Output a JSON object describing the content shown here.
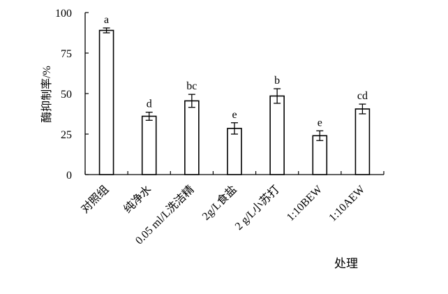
{
  "chart_data": {
    "type": "bar",
    "categories": [
      "对照组",
      "纯净水",
      "0.05 ml/L洗洁精",
      "2g/L食盐",
      "2 g/L小苏打",
      "1:10BEW",
      "1:10AEW"
    ],
    "values": [
      89,
      36,
      45.5,
      28.5,
      48.5,
      24,
      40.5
    ],
    "errors": [
      1.5,
      2.5,
      4,
      3.5,
      4.5,
      3,
      3
    ],
    "significance_labels": [
      "a",
      "d",
      "bc",
      "e",
      "b",
      "e",
      "cd"
    ],
    "ylabel": "酶抑制率/%",
    "xlabel": "处理",
    "ylim": [
      0,
      100
    ],
    "yticks": [
      0,
      25,
      50,
      75,
      100
    ],
    "grid": false,
    "bar_fill": "#ffffff",
    "bar_stroke": "#000000"
  }
}
